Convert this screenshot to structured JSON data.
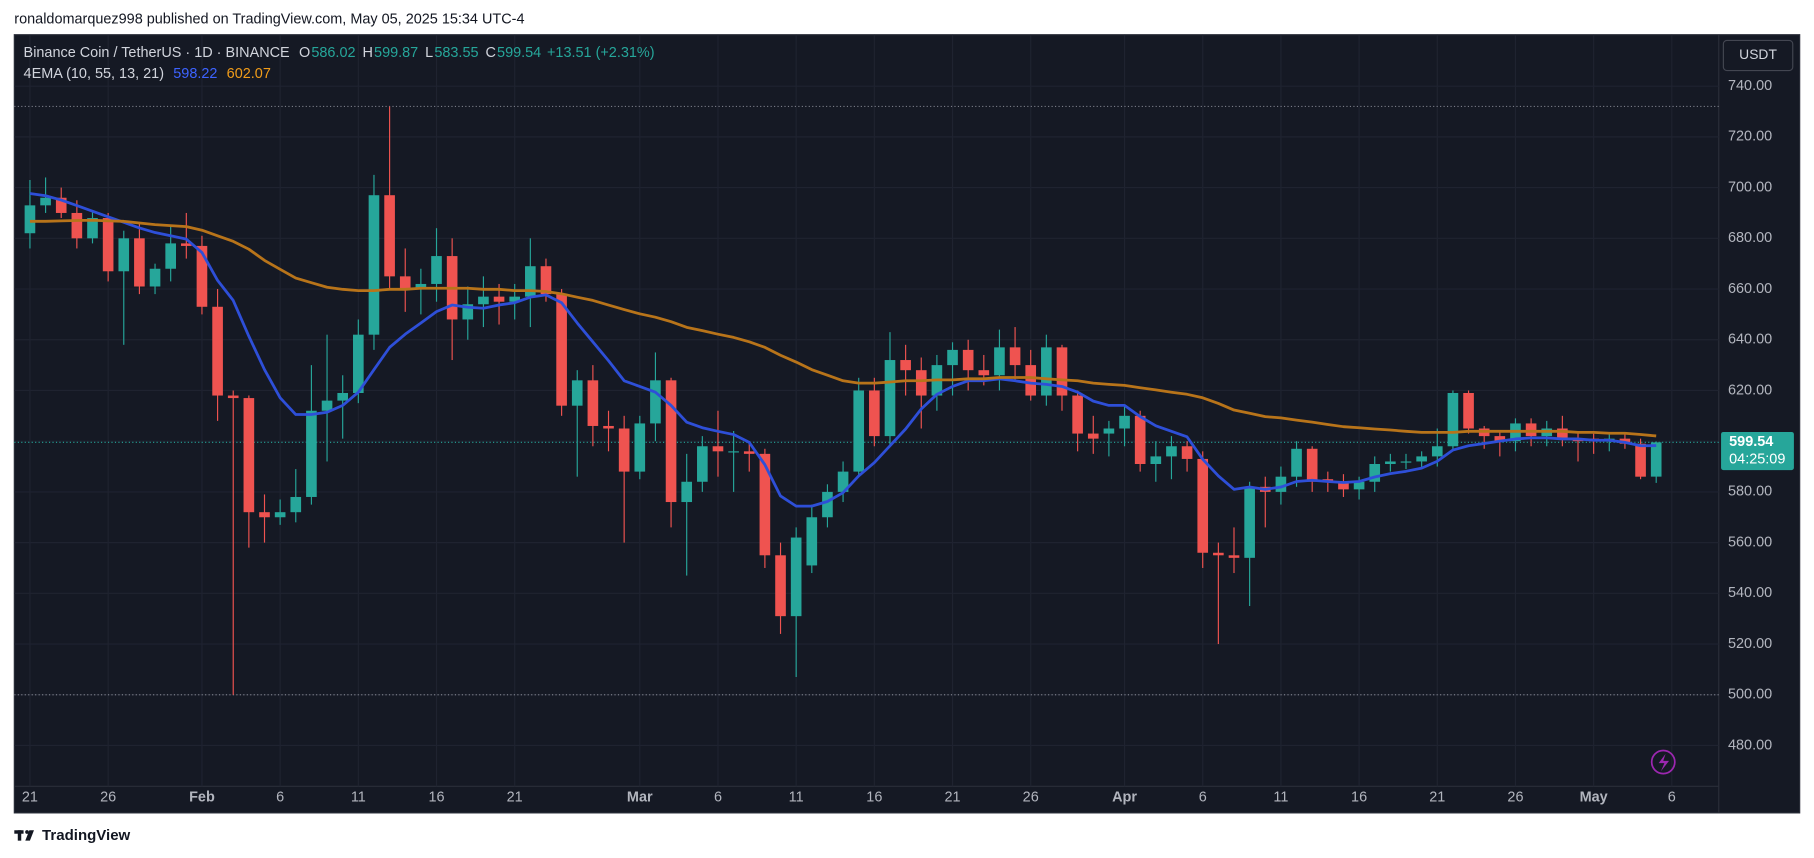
{
  "header": "ronaldomarquez998 published on TradingView.com, May 05, 2025 15:34 UTC-4",
  "footer": "TradingView",
  "currency": "USDT",
  "countdown": "04:25:09",
  "chart_data": {
    "type": "candlestick",
    "symbol": "Binance Coin / TetherUS · 1D · BINANCE",
    "ohlc_labels": [
      "O",
      "H",
      "L",
      "C"
    ],
    "change": "+13.51 (+2.31%)",
    "up_color": "#26a69a",
    "down_color": "#ef5350",
    "x": [
      "2025-01-21",
      "2025-01-22",
      "2025-01-23",
      "2025-01-24",
      "2025-01-25",
      "2025-01-26",
      "2025-01-27",
      "2025-01-28",
      "2025-01-29",
      "2025-01-30",
      "2025-01-31",
      "2025-02-01",
      "2025-02-02",
      "2025-02-03",
      "2025-02-04",
      "2025-02-05",
      "2025-02-06",
      "2025-02-07",
      "2025-02-08",
      "2025-02-09",
      "2025-02-10",
      "2025-02-11",
      "2025-02-12",
      "2025-02-13",
      "2025-02-14",
      "2025-02-15",
      "2025-02-16",
      "2025-02-17",
      "2025-02-18",
      "2025-02-19",
      "2025-02-20",
      "2025-02-21",
      "2025-02-22",
      "2025-02-23",
      "2025-02-24",
      "2025-02-25",
      "2025-02-26",
      "2025-02-27",
      "2025-02-28",
      "2025-03-01",
      "2025-03-02",
      "2025-03-03",
      "2025-03-04",
      "2025-03-05",
      "2025-03-06",
      "2025-03-07",
      "2025-03-08",
      "2025-03-09",
      "2025-03-10",
      "2025-03-11",
      "2025-03-12",
      "2025-03-13",
      "2025-03-14",
      "2025-03-15",
      "2025-03-16",
      "2025-03-17",
      "2025-03-18",
      "2025-03-19",
      "2025-03-20",
      "2025-03-21",
      "2025-03-22",
      "2025-03-23",
      "2025-03-24",
      "2025-03-25",
      "2025-03-26",
      "2025-03-27",
      "2025-03-28",
      "2025-03-29",
      "2025-03-30",
      "2025-03-31",
      "2025-04-01",
      "2025-04-02",
      "2025-04-03",
      "2025-04-04",
      "2025-04-05",
      "2025-04-06",
      "2025-04-07",
      "2025-04-08",
      "2025-04-09",
      "2025-04-10",
      "2025-04-11",
      "2025-04-12",
      "2025-04-13",
      "2025-04-14",
      "2025-04-15",
      "2025-04-16",
      "2025-04-17",
      "2025-04-18",
      "2025-04-19",
      "2025-04-20",
      "2025-04-21",
      "2025-04-22",
      "2025-04-23",
      "2025-04-24",
      "2025-04-25",
      "2025-04-26",
      "2025-04-27",
      "2025-04-28",
      "2025-04-29",
      "2025-04-30",
      "2025-05-01",
      "2025-05-02",
      "2025-05-03",
      "2025-05-04",
      "2025-05-05"
    ],
    "open": [
      682,
      693,
      696,
      690,
      680,
      688,
      667,
      680,
      661,
      668,
      678,
      677,
      653,
      618,
      617,
      572,
      570,
      572,
      578,
      612,
      616,
      619,
      642,
      697,
      665,
      660,
      662,
      673,
      648,
      654,
      657,
      655,
      657,
      669,
      658,
      614,
      624,
      606,
      605,
      588,
      607,
      624,
      576,
      584,
      598,
      596,
      596,
      595,
      555,
      531,
      551,
      570,
      580,
      588,
      620,
      602,
      632,
      628,
      618,
      630,
      636,
      628,
      626,
      637,
      630,
      618,
      637,
      618,
      603,
      603,
      605,
      610,
      591,
      594,
      598,
      593,
      556,
      555,
      554,
      582,
      580,
      586,
      597,
      585,
      584,
      581,
      584,
      591,
      592,
      592,
      594,
      598,
      619,
      605,
      602,
      600,
      607,
      602,
      605,
      601,
      601,
      600,
      601,
      599,
      586.02
    ],
    "high": [
      703,
      704,
      700,
      695,
      691,
      690,
      683,
      686,
      670,
      685,
      690,
      681,
      660,
      620,
      618,
      579,
      577,
      589,
      630,
      642,
      626,
      648,
      705,
      732,
      676,
      668,
      684,
      680,
      661,
      665,
      662,
      662,
      680,
      672,
      660,
      628,
      630,
      612,
      610,
      610,
      635,
      625,
      595,
      602,
      612,
      604,
      600,
      597,
      560,
      566,
      575,
      583,
      592,
      625,
      625,
      643,
      638,
      633,
      634,
      639,
      640,
      634,
      644,
      645,
      636,
      642,
      638,
      620,
      610,
      608,
      614,
      612,
      600,
      602,
      600,
      596,
      560,
      566,
      584,
      586,
      590,
      600,
      598,
      588,
      587,
      586,
      594,
      595,
      595,
      596,
      605,
      620,
      620,
      606,
      604,
      609,
      609,
      608,
      610,
      604,
      603,
      603,
      603,
      601,
      599.87
    ],
    "low": [
      676,
      690,
      688,
      676,
      678,
      663,
      638,
      658,
      658,
      663,
      672,
      650,
      608,
      500,
      558,
      560,
      567,
      568,
      575,
      592,
      601,
      615,
      636,
      660,
      651,
      650,
      655,
      632,
      640,
      645,
      646,
      648,
      645,
      655,
      610,
      586,
      598,
      596,
      560,
      585,
      600,
      566,
      547,
      580,
      586,
      580,
      588,
      550,
      524,
      507,
      548,
      566,
      576,
      586,
      598,
      598,
      618,
      605,
      612,
      618,
      620,
      622,
      620,
      624,
      616,
      614,
      612,
      596,
      595,
      594,
      598,
      588,
      584,
      585,
      588,
      550,
      520,
      548,
      535,
      566,
      575,
      582,
      580,
      580,
      578,
      577,
      580,
      588,
      589,
      589,
      590,
      596,
      603,
      597,
      594,
      596,
      598,
      598,
      598,
      592,
      595,
      596,
      597,
      585,
      583.55
    ],
    "close": [
      693,
      696,
      690,
      680,
      688,
      667,
      680,
      661,
      668,
      678,
      677,
      653,
      618,
      617,
      572,
      570,
      572,
      578,
      612,
      616,
      619,
      642,
      697,
      665,
      660,
      662,
      673,
      648,
      654,
      657,
      655,
      657,
      669,
      658,
      614,
      624,
      606,
      605,
      588,
      607,
      624,
      576,
      584,
      598,
      596,
      596,
      595,
      555,
      531,
      562,
      570,
      580,
      588,
      620,
      602,
      632,
      628,
      618,
      630,
      636,
      628,
      626,
      637,
      630,
      618,
      637,
      618,
      603,
      601,
      605,
      610,
      591,
      594,
      598,
      593,
      556,
      555,
      554,
      582,
      580,
      586,
      597,
      584,
      584,
      581,
      584,
      591,
      592,
      592,
      594,
      598,
      619,
      605,
      602,
      600,
      607,
      602,
      605,
      601,
      600,
      600,
      601,
      599,
      586,
      599.54
    ],
    "indicator": {
      "name": "4EMA (10, 55, 13, 21)",
      "series": [
        {
          "color": "#2e4fd8",
          "values": [
            697.7,
            696.8,
            695.1,
            692.9,
            690.7,
            688.5,
            686.3,
            684.1,
            682.3,
            681.0,
            679.7,
            674.4,
            663.4,
            655.5,
            641.4,
            628.2,
            617.1,
            610.5,
            610.5,
            611.4,
            614.1,
            619.3,
            628.2,
            637.0,
            642.2,
            646.6,
            651.1,
            653.7,
            652.8,
            652.4,
            653.7,
            654.6,
            656.8,
            657.7,
            654.6,
            646.6,
            639.2,
            631.7,
            623.8,
            621.6,
            619.3,
            614.1,
            607.5,
            605.3,
            603.9,
            602.6,
            599.5,
            590.7,
            578.4,
            574.4,
            574.4,
            576.2,
            579.7,
            586.3,
            591.6,
            598.2,
            604.8,
            612.7,
            618.5,
            621.6,
            623.8,
            623.8,
            624.6,
            623.8,
            622.9,
            622.4,
            621.6,
            619.3,
            615.8,
            614.1,
            614.1,
            609.7,
            606.1,
            603.9,
            601.7,
            592.9,
            586.3,
            581.0,
            581.9,
            581.0,
            581.9,
            584.1,
            584.6,
            584.1,
            583.7,
            584.1,
            585.9,
            587.2,
            588.1,
            589.4,
            592.1,
            596.5,
            598.2,
            599.1,
            600.0,
            600.9,
            601.3,
            601.3,
            600.9,
            600.9,
            600.4,
            600.4,
            599.5,
            598.2,
            598.22
          ]
        },
        {
          "color": "#b8741a",
          "values": [
            686.7,
            686.7,
            686.9,
            687.0,
            687.1,
            686.9,
            686.7,
            686.0,
            685.4,
            685.0,
            684.6,
            683.2,
            681.0,
            678.8,
            675.7,
            671.3,
            667.8,
            664.3,
            662.5,
            660.7,
            659.9,
            659.4,
            659.4,
            659.9,
            659.9,
            660.3,
            660.3,
            660.3,
            660.3,
            659.9,
            659.9,
            659.4,
            659.4,
            659.0,
            658.1,
            656.8,
            655.5,
            653.7,
            651.9,
            650.2,
            648.9,
            647.1,
            644.9,
            643.6,
            642.2,
            640.9,
            639.2,
            637.0,
            633.9,
            631.2,
            628.2,
            626.0,
            623.8,
            622.9,
            622.9,
            623.3,
            623.8,
            623.8,
            624.2,
            624.2,
            624.6,
            624.6,
            625.1,
            625.1,
            625.1,
            624.6,
            624.2,
            623.8,
            622.9,
            622.4,
            622.0,
            621.1,
            620.2,
            619.3,
            618.5,
            617.1,
            614.9,
            612.3,
            611.0,
            609.7,
            609.2,
            608.3,
            607.5,
            606.6,
            605.7,
            605.3,
            604.8,
            604.4,
            603.9,
            603.5,
            603.5,
            603.5,
            603.9,
            603.9,
            603.9,
            603.9,
            603.9,
            603.9,
            603.9,
            603.5,
            603.5,
            603.1,
            603.1,
            602.6,
            602.07
          ]
        }
      ]
    },
    "xlim": [
      "2025-01-20",
      "2025-05-09"
    ],
    "xticks": [
      {
        "value": "2025-01-21",
        "label": "21"
      },
      {
        "value": "2025-01-26",
        "label": "26"
      },
      {
        "value": "2025-02-01",
        "label": "Feb"
      },
      {
        "value": "2025-02-06",
        "label": "6"
      },
      {
        "value": "2025-02-11",
        "label": "11"
      },
      {
        "value": "2025-02-16",
        "label": "16"
      },
      {
        "value": "2025-02-21",
        "label": "21"
      },
      {
        "value": "2025-03-01",
        "label": "Mar"
      },
      {
        "value": "2025-03-06",
        "label": "6"
      },
      {
        "value": "2025-03-11",
        "label": "11"
      },
      {
        "value": "2025-03-16",
        "label": "16"
      },
      {
        "value": "2025-03-21",
        "label": "21"
      },
      {
        "value": "2025-03-26",
        "label": "26"
      },
      {
        "value": "2025-04-01",
        "label": "Apr"
      },
      {
        "value": "2025-04-06",
        "label": "6"
      },
      {
        "value": "2025-04-11",
        "label": "11"
      },
      {
        "value": "2025-04-16",
        "label": "16"
      },
      {
        "value": "2025-04-21",
        "label": "21"
      },
      {
        "value": "2025-04-26",
        "label": "26"
      },
      {
        "value": "2025-05-01",
        "label": "May"
      },
      {
        "value": "2025-05-06",
        "label": "6"
      }
    ],
    "ylim": [
      463.9,
      760.3
    ],
    "yticks": [
      {
        "value": 480,
        "label": "480.00"
      },
      {
        "value": 500,
        "label": "500.00"
      },
      {
        "value": 520,
        "label": "520.00"
      },
      {
        "value": 540,
        "label": "540.00"
      },
      {
        "value": 560,
        "label": "560.00"
      },
      {
        "value": 580,
        "label": "580.00"
      },
      {
        "value": 600,
        "label": "600.00"
      },
      {
        "value": 620,
        "label": "620.00"
      },
      {
        "value": 640,
        "label": "640.00"
      },
      {
        "value": 660,
        "label": "660.00"
      },
      {
        "value": 680,
        "label": "680.00"
      },
      {
        "value": 700,
        "label": "700.00"
      },
      {
        "value": 720,
        "label": "720.00"
      },
      {
        "value": 740,
        "label": "740.00"
      }
    ],
    "grid": true
  }
}
